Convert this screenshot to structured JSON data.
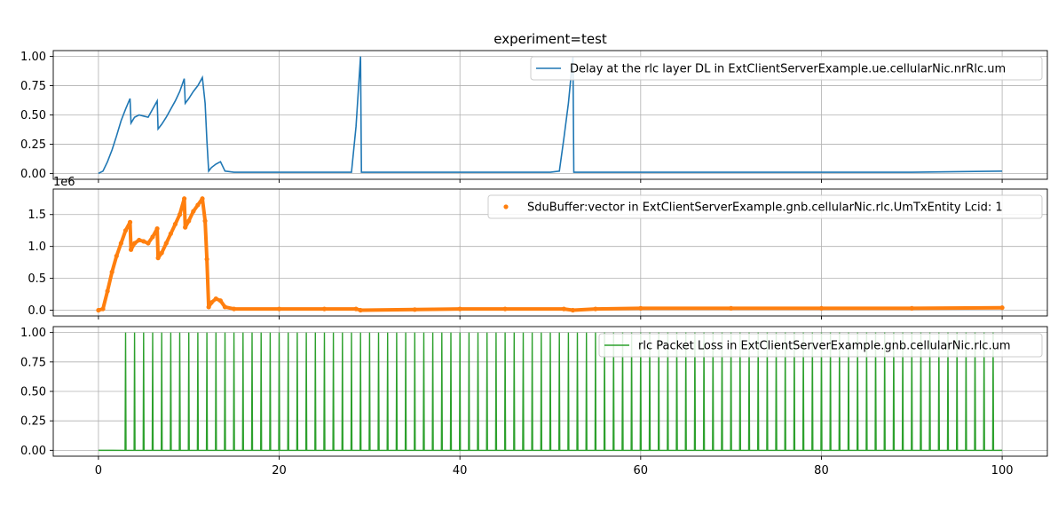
{
  "figure": {
    "title": "experiment=test"
  },
  "chart_data": [
    {
      "type": "line",
      "title": "",
      "xlabel": "",
      "ylabel": "",
      "xlim": [
        -5,
        105
      ],
      "ylim": [
        -0.05,
        1.05
      ],
      "xticks": [
        0,
        20,
        40,
        60,
        80,
        100
      ],
      "xtick_labels": [],
      "yticks": [
        0.0,
        0.25,
        0.5,
        0.75,
        1.0
      ],
      "ytick_labels": [
        "0.00",
        "0.25",
        "0.50",
        "0.75",
        "1.00"
      ],
      "grid": true,
      "legend_position": "top-right",
      "series": [
        {
          "name": "Delay at the rlc layer DL in ExtClientServerExample.ue.cellularNic.nrRlc.um",
          "color": "#1f77b4",
          "marker": "line",
          "x": [
            0,
            0.5,
            1.0,
            1.5,
            2.0,
            2.5,
            3.0,
            3.5,
            3.6,
            4.0,
            4.5,
            5.0,
            5.5,
            6.0,
            6.5,
            6.6,
            7.0,
            7.5,
            8.0,
            8.5,
            9.0,
            9.5,
            9.6,
            10.0,
            10.5,
            11.0,
            11.5,
            11.8,
            12.0,
            12.2,
            12.5,
            13.0,
            13.5,
            14.0,
            15.0,
            20.0,
            25.0,
            28.0,
            28.5,
            29.0,
            29.1,
            30.0,
            35.0,
            40.0,
            45.0,
            50.0,
            51.0,
            51.5,
            52.0,
            52.5,
            52.6,
            53.0,
            60.0,
            70.0,
            80.0,
            90.0,
            100.0
          ],
          "y": [
            0.0,
            0.02,
            0.1,
            0.2,
            0.32,
            0.45,
            0.55,
            0.64,
            0.43,
            0.48,
            0.5,
            0.49,
            0.48,
            0.55,
            0.62,
            0.38,
            0.42,
            0.48,
            0.55,
            0.62,
            0.7,
            0.81,
            0.6,
            0.64,
            0.7,
            0.75,
            0.82,
            0.6,
            0.28,
            0.02,
            0.05,
            0.08,
            0.1,
            0.02,
            0.01,
            0.01,
            0.01,
            0.01,
            0.4,
            1.0,
            0.01,
            0.01,
            0.01,
            0.01,
            0.01,
            0.01,
            0.02,
            0.3,
            0.6,
            1.0,
            0.01,
            0.01,
            0.01,
            0.01,
            0.01,
            0.01,
            0.02
          ]
        }
      ]
    },
    {
      "type": "scatter",
      "title": "",
      "xlabel": "",
      "ylabel": "",
      "xlim": [
        -5,
        105
      ],
      "ylim": [
        -0.09,
        1.9
      ],
      "y_offset_text": "1e6",
      "xticks": [
        0,
        20,
        40,
        60,
        80,
        100
      ],
      "xtick_labels": [],
      "yticks": [
        0.0,
        0.5,
        1.0,
        1.5
      ],
      "ytick_labels": [
        "0.0",
        "0.5",
        "1.0",
        "1.5"
      ],
      "grid": true,
      "legend_position": "top-right",
      "series": [
        {
          "name": "SduBuffer:vector in ExtClientServerExample.gnb.cellularNic.rlc.UmTxEntity Lcid: 1",
          "color": "#ff7f0e",
          "marker": "dot",
          "x": [
            0,
            0.5,
            1.0,
            1.5,
            2.0,
            2.5,
            3.0,
            3.5,
            3.6,
            4.0,
            4.5,
            5.0,
            5.5,
            6.0,
            6.5,
            6.6,
            7.0,
            7.5,
            8.0,
            8.5,
            9.0,
            9.5,
            9.6,
            10.0,
            10.5,
            11.0,
            11.5,
            11.8,
            12.0,
            12.2,
            12.5,
            13.0,
            13.5,
            14.0,
            15.0,
            20.0,
            25.0,
            28.5,
            29.0,
            35.0,
            40.0,
            45.0,
            51.5,
            52.5,
            55.0,
            60.0,
            70.0,
            80.0,
            90.0,
            100.0
          ],
          "y": [
            0.0,
            0.02,
            0.3,
            0.6,
            0.85,
            1.05,
            1.25,
            1.38,
            0.95,
            1.05,
            1.1,
            1.08,
            1.05,
            1.15,
            1.28,
            0.82,
            0.9,
            1.05,
            1.2,
            1.35,
            1.5,
            1.75,
            1.3,
            1.4,
            1.55,
            1.65,
            1.75,
            1.4,
            0.8,
            0.05,
            0.12,
            0.18,
            0.15,
            0.05,
            0.02,
            0.02,
            0.02,
            0.02,
            0.0,
            0.01,
            0.02,
            0.02,
            0.02,
            0.0,
            0.02,
            0.03,
            0.03,
            0.03,
            0.03,
            0.04
          ]
        }
      ]
    },
    {
      "type": "line",
      "title": "",
      "xlabel": "",
      "ylabel": "",
      "xlim": [
        -5,
        105
      ],
      "ylim": [
        -0.05,
        1.05
      ],
      "xticks": [
        0,
        20,
        40,
        60,
        80,
        100
      ],
      "xtick_labels": [
        "0",
        "20",
        "40",
        "60",
        "80",
        "100"
      ],
      "yticks": [
        0.0,
        0.25,
        0.5,
        0.75,
        1.0
      ],
      "ytick_labels": [
        "0.00",
        "0.25",
        "0.50",
        "0.75",
        "1.00"
      ],
      "grid": true,
      "legend_position": "top-right",
      "series": [
        {
          "name": "rlc Packet Loss in ExtClientServerExample.gnb.cellularNic.rlc.um",
          "color": "#2ca02c",
          "marker": "impulse",
          "x_start": 0,
          "x_end": 100,
          "baseline": 0,
          "spikes_x": [
            3.0,
            4.0,
            5.0,
            6.0,
            7.0,
            8.0,
            9.0,
            10.0,
            11.0,
            12.0,
            13.0,
            14.0,
            15.0,
            16.0,
            17.0,
            18.0,
            19.0,
            20.0,
            21.0,
            22.0,
            23.0,
            24.0,
            25.0,
            26.0,
            27.0,
            28.0,
            29.0,
            30.0,
            31.0,
            32.0,
            33.0,
            34.0,
            35.0,
            36.0,
            37.0,
            38.0,
            39.0,
            40.0,
            41.0,
            42.0,
            43.0,
            44.0,
            45.0,
            46.0,
            47.0,
            48.0,
            49.0,
            50.0,
            51.0,
            52.0,
            53.0,
            54.0,
            55.0,
            56.0,
            57.0,
            58.0,
            59.0,
            60.0,
            61.0,
            62.0,
            63.0,
            64.0,
            65.0,
            66.0,
            67.0,
            68.0,
            69.0,
            70.0,
            71.0,
            72.0,
            73.0,
            74.0,
            75.0,
            76.0,
            77.0,
            78.0,
            79.0,
            80.0,
            81.0,
            82.0,
            83.0,
            84.0,
            85.0,
            86.0,
            87.0,
            88.0,
            89.0,
            90.0,
            91.0,
            92.0,
            93.0,
            94.0,
            95.0,
            96.0,
            97.0,
            98.0,
            99.0
          ],
          "spike_value": 1
        }
      ]
    }
  ]
}
